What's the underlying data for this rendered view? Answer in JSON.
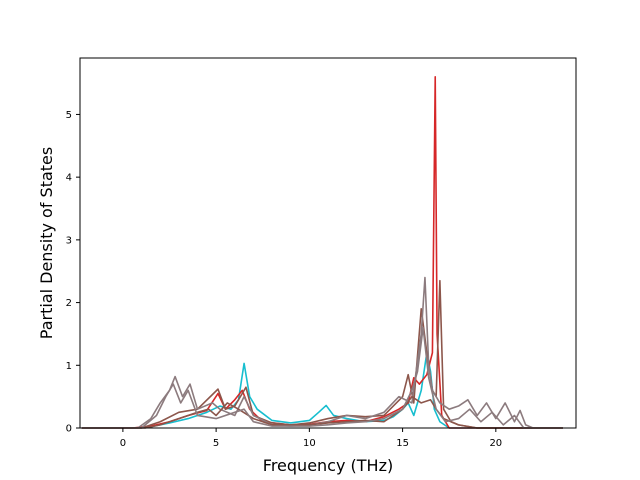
{
  "chart_data": {
    "type": "line",
    "title": "",
    "xlabel": "Frequency (THz)",
    "ylabel": "Partial Density of States",
    "xlim": [
      -2.3,
      24.3
    ],
    "ylim": [
      0,
      5.9
    ],
    "xticks": [
      0,
      5,
      10,
      15,
      20
    ],
    "yticks": [
      0,
      1,
      2,
      3,
      4,
      5
    ],
    "grid": false,
    "legend": "none",
    "series": [
      {
        "color": "#17becf",
        "points": [
          [
            -2.2,
            0
          ],
          [
            0.5,
            0
          ],
          [
            1.5,
            0.02
          ],
          [
            2.5,
            0.08
          ],
          [
            3.5,
            0.15
          ],
          [
            4.5,
            0.25
          ],
          [
            5.2,
            0.35
          ],
          [
            5.8,
            0.3
          ],
          [
            6.2,
            0.45
          ],
          [
            6.5,
            1.03
          ],
          [
            6.8,
            0.5
          ],
          [
            7.2,
            0.3
          ],
          [
            8,
            0.12
          ],
          [
            9,
            0.08
          ],
          [
            10,
            0.12
          ],
          [
            10.5,
            0.25
          ],
          [
            10.9,
            0.36
          ],
          [
            11.3,
            0.2
          ],
          [
            12,
            0.15
          ],
          [
            13,
            0.1
          ],
          [
            14,
            0.12
          ],
          [
            14.5,
            0.18
          ],
          [
            15,
            0.3
          ],
          [
            15.3,
            0.4
          ],
          [
            15.6,
            0.2
          ],
          [
            16,
            0.6
          ],
          [
            16.3,
            1.2
          ],
          [
            16.5,
            0.9
          ],
          [
            16.7,
            0.3
          ],
          [
            17,
            0.1
          ],
          [
            17.5,
            0
          ],
          [
            23.6,
            0
          ]
        ]
      },
      {
        "color": "#d62728",
        "points": [
          [
            -2.2,
            0
          ],
          [
            0.5,
            0
          ],
          [
            1.5,
            0.03
          ],
          [
            2.5,
            0.1
          ],
          [
            3.5,
            0.2
          ],
          [
            4.5,
            0.28
          ],
          [
            5.1,
            0.55
          ],
          [
            5.5,
            0.3
          ],
          [
            6,
            0.45
          ],
          [
            6.4,
            0.6
          ],
          [
            6.8,
            0.3
          ],
          [
            7.5,
            0.1
          ],
          [
            9,
            0.05
          ],
          [
            10,
            0.06
          ],
          [
            11,
            0.1
          ],
          [
            12,
            0.12
          ],
          [
            13,
            0.1
          ],
          [
            14,
            0.18
          ],
          [
            14.8,
            0.3
          ],
          [
            15.3,
            0.4
          ],
          [
            15.6,
            0.8
          ],
          [
            15.9,
            0.7
          ],
          [
            16.3,
            0.85
          ],
          [
            16.6,
            1.2
          ],
          [
            16.75,
            5.6
          ],
          [
            16.85,
            1.5
          ],
          [
            17.1,
            0.2
          ],
          [
            17.5,
            0
          ],
          [
            23.6,
            0
          ]
        ]
      },
      {
        "color": "#8c564b",
        "points": [
          [
            -2.2,
            0
          ],
          [
            1,
            0
          ],
          [
            2,
            0.1
          ],
          [
            3,
            0.25
          ],
          [
            4,
            0.3
          ],
          [
            5.1,
            0.62
          ],
          [
            5.5,
            0.3
          ],
          [
            6,
            0.35
          ],
          [
            6.6,
            0.65
          ],
          [
            7,
            0.2
          ],
          [
            8,
            0.08
          ],
          [
            9,
            0.05
          ],
          [
            10,
            0.08
          ],
          [
            11,
            0.15
          ],
          [
            12,
            0.2
          ],
          [
            13,
            0.18
          ],
          [
            14,
            0.2
          ],
          [
            15,
            0.5
          ],
          [
            15.3,
            0.85
          ],
          [
            15.6,
            0.4
          ],
          [
            16,
            1.9
          ],
          [
            16.3,
            1.2
          ],
          [
            16.6,
            0.6
          ],
          [
            16.8,
            0.5
          ],
          [
            17,
            2.35
          ],
          [
            17.2,
            0.3
          ],
          [
            17.6,
            0.1
          ],
          [
            18,
            0.05
          ],
          [
            19,
            0
          ],
          [
            23.6,
            0
          ]
        ]
      },
      {
        "color": "#8c7b7e",
        "points": [
          [
            -2.2,
            0
          ],
          [
            0.8,
            0
          ],
          [
            1.5,
            0.15
          ],
          [
            2,
            0.4
          ],
          [
            2.5,
            0.6
          ],
          [
            2.8,
            0.82
          ],
          [
            3.2,
            0.5
          ],
          [
            3.6,
            0.7
          ],
          [
            4,
            0.3
          ],
          [
            4.8,
            0.4
          ],
          [
            5.2,
            0.3
          ],
          [
            6,
            0.2
          ],
          [
            6.5,
            0.5
          ],
          [
            7,
            0.2
          ],
          [
            8,
            0.05
          ],
          [
            9,
            0.03
          ],
          [
            10,
            0.05
          ],
          [
            11,
            0.1
          ],
          [
            12,
            0.2
          ],
          [
            13,
            0.15
          ],
          [
            14,
            0.25
          ],
          [
            14.8,
            0.5
          ],
          [
            15.5,
            0.4
          ],
          [
            16,
            1.5
          ],
          [
            16.2,
            2.4
          ],
          [
            16.4,
            1.0
          ],
          [
            16.6,
            0.6
          ],
          [
            17,
            0.4
          ],
          [
            17.5,
            0.3
          ],
          [
            18,
            0.35
          ],
          [
            18.5,
            0.45
          ],
          [
            19,
            0.2
          ],
          [
            19.5,
            0.4
          ],
          [
            20,
            0.15
          ],
          [
            20.5,
            0.4
          ],
          [
            21,
            0.1
          ],
          [
            21.3,
            0.28
          ],
          [
            21.6,
            0.05
          ],
          [
            22,
            0
          ],
          [
            23.6,
            0
          ]
        ]
      },
      {
        "color": "#8c564b",
        "points": [
          [
            -2.2,
            0
          ],
          [
            1.2,
            0
          ],
          [
            2,
            0.05
          ],
          [
            3,
            0.15
          ],
          [
            4,
            0.25
          ],
          [
            4.6,
            0.3
          ],
          [
            5,
            0.2
          ],
          [
            5.6,
            0.4
          ],
          [
            6.2,
            0.3
          ],
          [
            7,
            0.15
          ],
          [
            8,
            0.05
          ],
          [
            10,
            0.05
          ],
          [
            11,
            0.08
          ],
          [
            12,
            0.1
          ],
          [
            13,
            0.12
          ],
          [
            14,
            0.1
          ],
          [
            15,
            0.3
          ],
          [
            15.5,
            0.5
          ],
          [
            16,
            0.4
          ],
          [
            16.5,
            0.45
          ],
          [
            16.8,
            0.3
          ],
          [
            17.2,
            0.15
          ],
          [
            18,
            0.05
          ],
          [
            19,
            0
          ],
          [
            23.6,
            0
          ]
        ]
      },
      {
        "color": "#8c7b7e",
        "points": [
          [
            -2.2,
            0
          ],
          [
            1,
            0
          ],
          [
            1.8,
            0.2
          ],
          [
            2.3,
            0.5
          ],
          [
            2.7,
            0.7
          ],
          [
            3.1,
            0.4
          ],
          [
            3.5,
            0.6
          ],
          [
            4,
            0.2
          ],
          [
            5,
            0.15
          ],
          [
            6,
            0.25
          ],
          [
            6.5,
            0.3
          ],
          [
            7,
            0.1
          ],
          [
            8,
            0.03
          ],
          [
            10,
            0.03
          ],
          [
            11,
            0.05
          ],
          [
            12,
            0.08
          ],
          [
            13,
            0.1
          ],
          [
            14,
            0.15
          ],
          [
            15,
            0.3
          ],
          [
            15.5,
            0.6
          ],
          [
            15.8,
            0.9
          ],
          [
            16.1,
            1.6
          ],
          [
            16.4,
            0.8
          ],
          [
            16.8,
            0.3
          ],
          [
            17.3,
            0.1
          ],
          [
            18,
            0.15
          ],
          [
            18.6,
            0.3
          ],
          [
            19.2,
            0.1
          ],
          [
            19.8,
            0.25
          ],
          [
            20.4,
            0.05
          ],
          [
            21,
            0.2
          ],
          [
            21.5,
            0
          ],
          [
            23.6,
            0
          ]
        ]
      }
    ]
  }
}
